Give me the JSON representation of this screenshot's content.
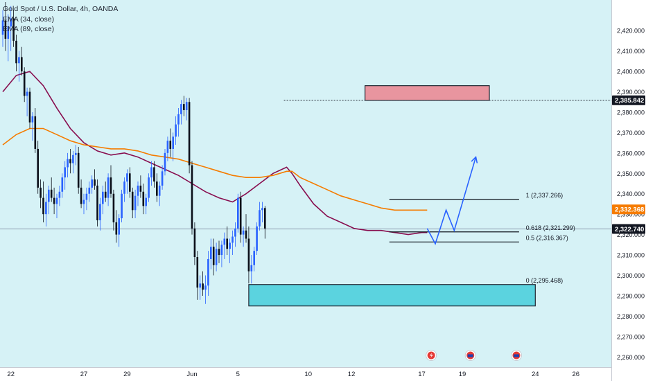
{
  "legend": {
    "title": "Gold Spot / U.S. Dollar, 4h, OANDA",
    "ind1": "EMA (34, close)",
    "ind2": "EMA (89, close)"
  },
  "chart_data": {
    "type": "candlestick",
    "title": "Gold Spot / U.S. Dollar, 4h, OANDA",
    "ylim": [
      2255,
      2435
    ],
    "y_ticks": [
      2260,
      2270,
      2280,
      2290,
      2300,
      2310,
      2320,
      2330,
      2340,
      2350,
      2360,
      2370,
      2380,
      2390,
      2400,
      2410,
      2420
    ],
    "x_ticks": [
      {
        "label": "22",
        "bar": 3
      },
      {
        "label": "27",
        "bar": 30
      },
      {
        "label": "29",
        "bar": 46
      },
      {
        "label": "Jun",
        "bar": 70
      },
      {
        "label": "5",
        "bar": 87
      },
      {
        "label": "10",
        "bar": 113
      },
      {
        "label": "12",
        "bar": 129
      },
      {
        "label": "17",
        "bar": 155
      },
      {
        "label": "19",
        "bar": 170
      },
      {
        "label": "24",
        "bar": 197
      },
      {
        "label": "26",
        "bar": 212
      }
    ],
    "price_labels": [
      {
        "value": 2385.842,
        "text": "2,385.842",
        "color": "#131722"
      },
      {
        "value": 2332.368,
        "text": "2,332.368",
        "color": "#f57c00"
      },
      {
        "value": 2322.74,
        "text": "2,322.740",
        "color": "#131722"
      }
    ],
    "fib_levels": [
      {
        "label": "1 (2,337.266)",
        "value": 2337.266
      },
      {
        "label": "0.618 (2,321.299)",
        "value": 2321.299
      },
      {
        "label": "0.5 (2,316.367)",
        "value": 2316.367
      },
      {
        "label": "0 (2,295.468)",
        "value": 2295.468
      }
    ],
    "zones": [
      {
        "name": "supply-zone",
        "y1": 2385.8,
        "y2": 2393,
        "b1": 134,
        "b2": 180,
        "color": "#e8959f"
      },
      {
        "name": "demand-zone",
        "y1": 2285,
        "y2": 2295.5,
        "b1": 91,
        "b2": 197,
        "color": "#5bd3df"
      }
    ],
    "projection": [
      {
        "bar": 157,
        "value": 2323
      },
      {
        "bar": 160,
        "value": 2315.5
      },
      {
        "bar": 164,
        "value": 2332
      },
      {
        "bar": 167,
        "value": 2322
      },
      {
        "bar": 175,
        "value": 2358
      }
    ],
    "series": [
      {
        "name": "EMA (34, close)",
        "color": "#880e4f",
        "points": [
          [
            0,
            2390
          ],
          [
            5,
            2398
          ],
          [
            10,
            2400
          ],
          [
            15,
            2393
          ],
          [
            20,
            2382
          ],
          [
            25,
            2372
          ],
          [
            30,
            2365
          ],
          [
            35,
            2361
          ],
          [
            40,
            2359
          ],
          [
            45,
            2360
          ],
          [
            50,
            2358
          ],
          [
            55,
            2355
          ],
          [
            60,
            2352
          ],
          [
            65,
            2349
          ],
          [
            70,
            2345
          ],
          [
            75,
            2341
          ],
          [
            80,
            2338
          ],
          [
            85,
            2336
          ],
          [
            90,
            2340
          ],
          [
            95,
            2345
          ],
          [
            100,
            2350
          ],
          [
            105,
            2353
          ],
          [
            107,
            2350
          ],
          [
            110,
            2344
          ],
          [
            115,
            2335
          ],
          [
            120,
            2329
          ],
          [
            125,
            2326
          ],
          [
            130,
            2323
          ],
          [
            135,
            2322
          ],
          [
            140,
            2322
          ],
          [
            145,
            2321
          ],
          [
            150,
            2320
          ],
          [
            155,
            2321
          ],
          [
            157,
            2321
          ]
        ]
      },
      {
        "name": "EMA (89, close)",
        "color": "#f57c00",
        "points": [
          [
            0,
            2364
          ],
          [
            5,
            2369
          ],
          [
            10,
            2372
          ],
          [
            15,
            2372
          ],
          [
            20,
            2369
          ],
          [
            25,
            2366
          ],
          [
            30,
            2364
          ],
          [
            35,
            2363
          ],
          [
            40,
            2362
          ],
          [
            45,
            2362
          ],
          [
            50,
            2361
          ],
          [
            55,
            2359
          ],
          [
            60,
            2358
          ],
          [
            65,
            2357
          ],
          [
            70,
            2355
          ],
          [
            75,
            2353
          ],
          [
            80,
            2351
          ],
          [
            85,
            2349
          ],
          [
            90,
            2348
          ],
          [
            95,
            2348
          ],
          [
            100,
            2349
          ],
          [
            105,
            2351
          ],
          [
            107,
            2351
          ],
          [
            110,
            2348
          ],
          [
            115,
            2345
          ],
          [
            120,
            2342
          ],
          [
            125,
            2339
          ],
          [
            130,
            2337
          ],
          [
            135,
            2335
          ],
          [
            140,
            2333
          ],
          [
            145,
            2332
          ],
          [
            150,
            2332
          ],
          [
            155,
            2332
          ],
          [
            157,
            2332
          ]
        ]
      },
      {
        "name": "price",
        "ohlc": [
          [
            2418,
            2430,
            2412,
            2425
          ],
          [
            2425,
            2434,
            2410,
            2416
          ],
          [
            2416,
            2428,
            2405,
            2422
          ],
          [
            2422,
            2432,
            2410,
            2426
          ],
          [
            2426,
            2430,
            2412,
            2415
          ],
          [
            2415,
            2418,
            2400,
            2404
          ],
          [
            2404,
            2410,
            2395,
            2407
          ],
          [
            2407,
            2412,
            2398,
            2400
          ],
          [
            2400,
            2402,
            2385,
            2388
          ],
          [
            2388,
            2392,
            2378,
            2390
          ],
          [
            2390,
            2392,
            2372,
            2375
          ],
          [
            2375,
            2380,
            2366,
            2378
          ],
          [
            2378,
            2382,
            2360,
            2362
          ],
          [
            2362,
            2366,
            2340,
            2343
          ],
          [
            2343,
            2347,
            2333,
            2338
          ],
          [
            2338,
            2346,
            2326,
            2330
          ],
          [
            2330,
            2340,
            2324,
            2336
          ],
          [
            2336,
            2344,
            2330,
            2342
          ],
          [
            2342,
            2348,
            2336,
            2338
          ],
          [
            2338,
            2343,
            2330,
            2335
          ],
          [
            2335,
            2340,
            2328,
            2338
          ],
          [
            2338,
            2344,
            2334,
            2341
          ],
          [
            2341,
            2350,
            2338,
            2348
          ],
          [
            2348,
            2356,
            2342,
            2353
          ],
          [
            2353,
            2360,
            2348,
            2357
          ],
          [
            2357,
            2362,
            2350,
            2355
          ],
          [
            2355,
            2361,
            2350,
            2359
          ],
          [
            2359,
            2364,
            2354,
            2360
          ],
          [
            2360,
            2363,
            2340,
            2343
          ],
          [
            2343,
            2347,
            2333,
            2335
          ],
          [
            2335,
            2340,
            2330,
            2337
          ],
          [
            2337,
            2343,
            2332,
            2340
          ],
          [
            2340,
            2346,
            2336,
            2343
          ],
          [
            2343,
            2349,
            2340,
            2347
          ],
          [
            2347,
            2352,
            2342,
            2344
          ],
          [
            2344,
            2347,
            2324,
            2327
          ],
          [
            2327,
            2338,
            2322,
            2335
          ],
          [
            2335,
            2344,
            2330,
            2341
          ],
          [
            2341,
            2346,
            2336,
            2338
          ],
          [
            2338,
            2350,
            2334,
            2348
          ],
          [
            2348,
            2354,
            2338,
            2340
          ],
          [
            2340,
            2342,
            2322,
            2326
          ],
          [
            2326,
            2332,
            2316,
            2320
          ],
          [
            2320,
            2330,
            2314,
            2328
          ],
          [
            2328,
            2342,
            2326,
            2340
          ],
          [
            2340,
            2348,
            2336,
            2346
          ],
          [
            2346,
            2352,
            2340,
            2350
          ],
          [
            2350,
            2353,
            2338,
            2341
          ],
          [
            2341,
            2343,
            2328,
            2332
          ],
          [
            2332,
            2342,
            2328,
            2339
          ],
          [
            2339,
            2346,
            2334,
            2344
          ],
          [
            2344,
            2349,
            2338,
            2341
          ],
          [
            2341,
            2345,
            2330,
            2334
          ],
          [
            2334,
            2340,
            2330,
            2338
          ],
          [
            2338,
            2350,
            2336,
            2348
          ],
          [
            2348,
            2356,
            2344,
            2353
          ],
          [
            2353,
            2356,
            2343,
            2346
          ],
          [
            2346,
            2350,
            2336,
            2339
          ],
          [
            2339,
            2346,
            2334,
            2344
          ],
          [
            2344,
            2354,
            2342,
            2351
          ],
          [
            2351,
            2362,
            2349,
            2360
          ],
          [
            2360,
            2368,
            2356,
            2366
          ],
          [
            2366,
            2372,
            2358,
            2362
          ],
          [
            2362,
            2370,
            2356,
            2368
          ],
          [
            2368,
            2378,
            2364,
            2374
          ],
          [
            2374,
            2382,
            2368,
            2379
          ],
          [
            2379,
            2386,
            2374,
            2384
          ],
          [
            2384,
            2388,
            2378,
            2381
          ],
          [
            2381,
            2387,
            2376,
            2385
          ],
          [
            2385,
            2387,
            2350,
            2354
          ],
          [
            2354,
            2356,
            2320,
            2323
          ],
          [
            2323,
            2326,
            2305,
            2309
          ],
          [
            2309,
            2312,
            2288,
            2294
          ],
          [
            2294,
            2300,
            2288,
            2296
          ],
          [
            2296,
            2302,
            2290,
            2293
          ],
          [
            2293,
            2300,
            2286,
            2295
          ],
          [
            2295,
            2312,
            2290,
            2308
          ],
          [
            2308,
            2318,
            2303,
            2314
          ],
          [
            2314,
            2318,
            2300,
            2305
          ],
          [
            2305,
            2316,
            2302,
            2313
          ],
          [
            2313,
            2317,
            2306,
            2310
          ],
          [
            2310,
            2317,
            2304,
            2315
          ],
          [
            2315,
            2321,
            2308,
            2318
          ],
          [
            2318,
            2324,
            2310,
            2313
          ],
          [
            2313,
            2318,
            2306,
            2316
          ],
          [
            2316,
            2322,
            2310,
            2319
          ],
          [
            2319,
            2326,
            2314,
            2323
          ],
          [
            2323,
            2340,
            2321,
            2338
          ],
          [
            2338,
            2341,
            2316,
            2320
          ],
          [
            2320,
            2324,
            2314,
            2322
          ],
          [
            2322,
            2330,
            2316,
            2318
          ],
          [
            2318,
            2324,
            2296,
            2302
          ],
          [
            2302,
            2310,
            2296,
            2305
          ],
          [
            2305,
            2314,
            2302,
            2312
          ],
          [
            2312,
            2326,
            2310,
            2324
          ],
          [
            2324,
            2336,
            2322,
            2332
          ],
          [
            2332,
            2336,
            2326,
            2333
          ],
          [
            2333,
            2334,
            2318,
            2323
          ]
        ]
      }
    ]
  }
}
